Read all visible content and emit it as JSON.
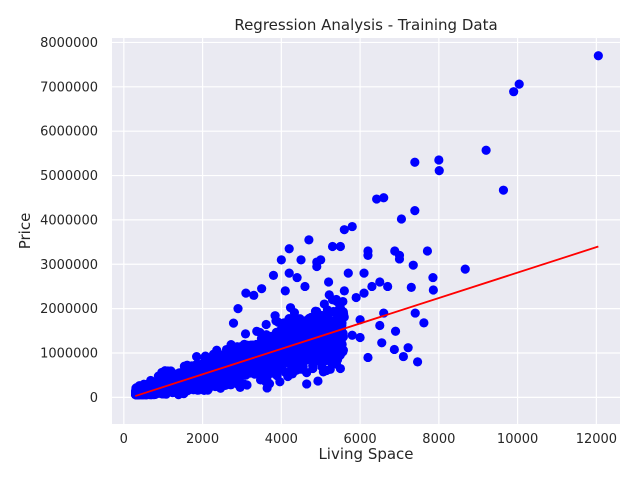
{
  "chart_data": {
    "type": "scatter",
    "title": "Regression Analysis - Training Data",
    "xlabel": "Living Space",
    "ylabel": "Price",
    "xlim": [
      -300,
      12600
    ],
    "ylim": [
      -600000,
      8100000
    ],
    "x_ticks": [
      0,
      2000,
      4000,
      6000,
      8000,
      10000,
      12000
    ],
    "x_tick_labels": [
      "0",
      "2000",
      "4000",
      "6000",
      "8000",
      "10000",
      "12000"
    ],
    "y_ticks": [
      0,
      1000000,
      2000000,
      3000000,
      4000000,
      5000000,
      6000000,
      7000000,
      8000000
    ],
    "y_tick_labels": [
      "0",
      "1000000",
      "2000000",
      "3000000",
      "4000000",
      "5000000",
      "6000000",
      "7000000",
      "8000000"
    ],
    "grid": true,
    "background_color": "#eaeaf2",
    "grid_color": "#ffffff",
    "scatter_color": "#0000ff",
    "line_color": "#ff0000",
    "regression_line": {
      "x": [
        290,
        12050
      ],
      "y": [
        30000,
        3400000
      ]
    },
    "outlier_points": [
      {
        "x": 12050,
        "y": 7700000
      },
      {
        "x": 10040,
        "y": 7060000
      },
      {
        "x": 9900,
        "y": 6890000
      },
      {
        "x": 9200,
        "y": 5570000
      },
      {
        "x": 9640,
        "y": 4670000
      },
      {
        "x": 7390,
        "y": 5300000
      },
      {
        "x": 8000,
        "y": 5350000
      },
      {
        "x": 8010,
        "y": 5110000
      },
      {
        "x": 8670,
        "y": 2890000
      },
      {
        "x": 7850,
        "y": 2700000
      },
      {
        "x": 7860,
        "y": 2420000
      },
      {
        "x": 7710,
        "y": 3300000
      },
      {
        "x": 7620,
        "y": 1680000
      },
      {
        "x": 7390,
        "y": 4210000
      },
      {
        "x": 7350,
        "y": 2980000
      },
      {
        "x": 7050,
        "y": 4020000
      },
      {
        "x": 7000,
        "y": 3200000
      },
      {
        "x": 6880,
        "y": 3300000
      },
      {
        "x": 7000,
        "y": 3120000
      },
      {
        "x": 7300,
        "y": 2480000
      },
      {
        "x": 6900,
        "y": 1490000
      },
      {
        "x": 7100,
        "y": 920000
      },
      {
        "x": 7400,
        "y": 1900000
      },
      {
        "x": 6700,
        "y": 2500000
      },
      {
        "x": 6600,
        "y": 4500000
      },
      {
        "x": 6420,
        "y": 4470000
      },
      {
        "x": 7220,
        "y": 1120000
      },
      {
        "x": 7460,
        "y": 800000
      },
      {
        "x": 6550,
        "y": 1230000
      },
      {
        "x": 6870,
        "y": 1080000
      },
      {
        "x": 6500,
        "y": 1620000
      },
      {
        "x": 6600,
        "y": 1900000
      },
      {
        "x": 5800,
        "y": 3850000
      },
      {
        "x": 5500,
        "y": 3400000
      },
      {
        "x": 6200,
        "y": 3300000
      },
      {
        "x": 6200,
        "y": 3200000
      },
      {
        "x": 6500,
        "y": 2600000
      },
      {
        "x": 6100,
        "y": 2800000
      },
      {
        "x": 6300,
        "y": 2500000
      },
      {
        "x": 5300,
        "y": 3400000
      },
      {
        "x": 5600,
        "y": 3780000
      },
      {
        "x": 4200,
        "y": 3350000
      },
      {
        "x": 4500,
        "y": 3100000
      },
      {
        "x": 4900,
        "y": 3050000
      },
      {
        "x": 5000,
        "y": 3100000
      },
      {
        "x": 4700,
        "y": 3550000
      },
      {
        "x": 4000,
        "y": 3100000
      },
      {
        "x": 4900,
        "y": 2950000
      },
      {
        "x": 5700,
        "y": 2800000
      },
      {
        "x": 5900,
        "y": 2250000
      },
      {
        "x": 6000,
        "y": 1750000
      },
      {
        "x": 5600,
        "y": 2400000
      },
      {
        "x": 4200,
        "y": 2800000
      },
      {
        "x": 3800,
        "y": 2750000
      },
      {
        "x": 5300,
        "y": 2200000
      },
      {
        "x": 6100,
        "y": 2350000
      },
      {
        "x": 5800,
        "y": 1400000
      },
      {
        "x": 5400,
        "y": 750000
      },
      {
        "x": 5100,
        "y": 900000
      },
      {
        "x": 5500,
        "y": 650000
      },
      {
        "x": 6000,
        "y": 1350000
      },
      {
        "x": 6200,
        "y": 900000
      },
      {
        "x": 4800,
        "y": 650000
      },
      {
        "x": 5000,
        "y": 1800000
      },
      {
        "x": 5200,
        "y": 2600000
      },
      {
        "x": 4600,
        "y": 2500000
      },
      {
        "x": 4400,
        "y": 2700000
      },
      {
        "x": 4100,
        "y": 2400000
      },
      {
        "x": 3500,
        "y": 2450000
      },
      {
        "x": 3300,
        "y": 2300000
      },
      {
        "x": 3100,
        "y": 2350000
      },
      {
        "x": 2900,
        "y": 2000000
      }
    ],
    "cloud_model": {
      "description_free": true,
      "x_range": [
        300,
        6500
      ],
      "y_center_slope": 255,
      "y_center_intercept": -30000
    }
  }
}
